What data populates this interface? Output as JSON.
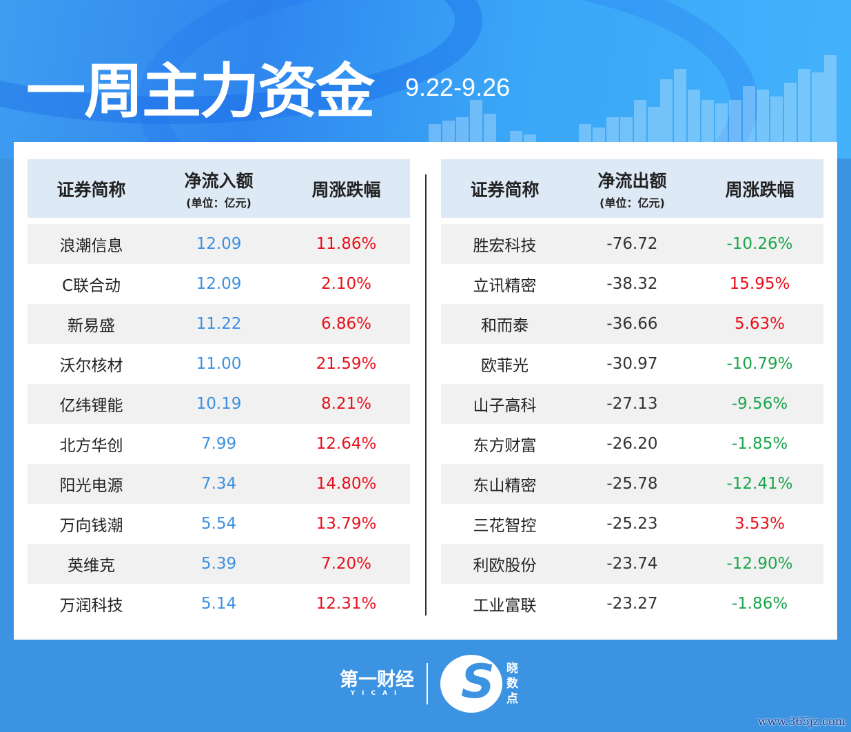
{
  "header": {
    "title": "一周主力资金",
    "date_range": "9.22-9.26"
  },
  "inflow_table": {
    "columns": [
      "证券简称",
      "净流入额",
      "周涨跌幅"
    ],
    "unit": "(单位：亿元)",
    "rows": [
      [
        "浪潮信息",
        "12.09",
        "11.86%"
      ],
      [
        "C联合动",
        "12.09",
        "2.10%"
      ],
      [
        "新易盛",
        "11.22",
        "6.86%"
      ],
      [
        "沃尔核材",
        "11.00",
        "21.59%"
      ],
      [
        "亿纬锂能",
        "10.19",
        "8.21%"
      ],
      [
        "北方华创",
        "7.99",
        "12.64%"
      ],
      [
        "阳光电源",
        "7.34",
        "14.80%"
      ],
      [
        "万向钱潮",
        "5.54",
        "13.79%"
      ],
      [
        "英维克",
        "5.39",
        "7.20%"
      ],
      [
        "万润科技",
        "5.14",
        "12.31%"
      ]
    ]
  },
  "outflow_table": {
    "columns": [
      "证券简称",
      "净流出额",
      "周涨跌幅"
    ],
    "unit": "(单位：亿元)",
    "rows": [
      [
        "胜宏科技",
        "-76.72",
        "-10.26%"
      ],
      [
        "立讯精密",
        "-38.32",
        "15.95%"
      ],
      [
        "和而泰",
        "-36.66",
        "5.63%"
      ],
      [
        "欧菲光",
        "-30.97",
        "-10.79%"
      ],
      [
        "山子高科",
        "-27.13",
        "-9.56%"
      ],
      [
        "东方财富",
        "-26.20",
        "-1.85%"
      ],
      [
        "东山精密",
        "-25.78",
        "-12.41%"
      ],
      [
        "三花智控",
        "-25.23",
        "3.53%"
      ],
      [
        "利欧股份",
        "-23.74",
        "-12.90%"
      ],
      [
        "工业富联",
        "-23.27",
        "-1.86%"
      ]
    ]
  },
  "footer": {
    "brand": "第一财经",
    "brand_sub": "YICAI",
    "product": "晓数点",
    "watermark": "www.365jz.com"
  },
  "colors": {
    "positive": "#e8101a",
    "negative": "#1aa64b",
    "inflow_value": "#3d90e0",
    "header_bg": "#dde9f5",
    "page_bg": "#3b93e2"
  }
}
